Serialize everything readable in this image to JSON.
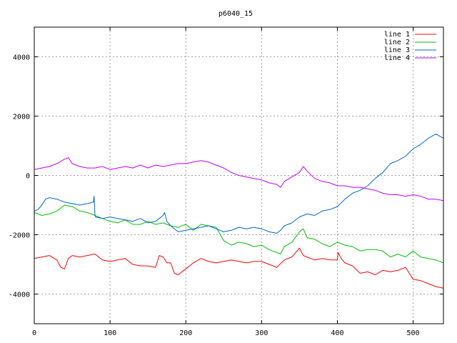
{
  "chart_data": {
    "type": "line",
    "title": "p6040_15",
    "xlabel": "",
    "ylabel": "",
    "xlim": [
      0,
      540
    ],
    "ylim": [
      -5000,
      5000
    ],
    "x_ticks": [
      0,
      100,
      200,
      300,
      400,
      500
    ],
    "y_ticks": [
      -4000,
      -2000,
      0,
      2000,
      4000
    ],
    "grid": true,
    "legend_position": "top-right",
    "series": [
      {
        "name": "line 1",
        "color": "#ff0000",
        "x": [
          0,
          10,
          20,
          30,
          35,
          40,
          45,
          50,
          60,
          70,
          80,
          90,
          100,
          110,
          120,
          130,
          140,
          150,
          160,
          165,
          170,
          175,
          180,
          185,
          190,
          200,
          210,
          220,
          230,
          240,
          250,
          260,
          270,
          280,
          290,
          300,
          310,
          320,
          330,
          340,
          350,
          355,
          360,
          370,
          380,
          390,
          400,
          401,
          405,
          410,
          420,
          430,
          440,
          450,
          460,
          470,
          480,
          490,
          500,
          510,
          520,
          530,
          540
        ],
        "values": [
          -2800,
          -2750,
          -2700,
          -2850,
          -3100,
          -3150,
          -2800,
          -2700,
          -2750,
          -2700,
          -2650,
          -2850,
          -2900,
          -2850,
          -2800,
          -3000,
          -3050,
          -3050,
          -3100,
          -2700,
          -2750,
          -2950,
          -2950,
          -3300,
          -3350,
          -3150,
          -2950,
          -2800,
          -2900,
          -2950,
          -2900,
          -2850,
          -2900,
          -2950,
          -2900,
          -2900,
          -3000,
          -3100,
          -2850,
          -2750,
          -2450,
          -2700,
          -2750,
          -2850,
          -2800,
          -2850,
          -2850,
          -2600,
          -2800,
          -2950,
          -3050,
          -3300,
          -3250,
          -3350,
          -3200,
          -3250,
          -3200,
          -3100,
          -3500,
          -3550,
          -3650,
          -3750,
          -3800
        ]
      },
      {
        "name": "line 2",
        "color": "#00c000",
        "x": [
          0,
          10,
          20,
          30,
          40,
          50,
          60,
          70,
          80,
          90,
          100,
          110,
          120,
          130,
          140,
          150,
          160,
          170,
          180,
          190,
          200,
          210,
          220,
          230,
          240,
          250,
          260,
          270,
          280,
          290,
          300,
          310,
          320,
          325,
          330,
          340,
          350,
          355,
          360,
          370,
          380,
          390,
          400,
          410,
          420,
          430,
          440,
          450,
          460,
          470,
          480,
          490,
          500,
          510,
          520,
          530,
          540
        ],
        "values": [
          -1250,
          -1350,
          -1300,
          -1200,
          -1000,
          -1050,
          -1200,
          -1250,
          -1350,
          -1450,
          -1550,
          -1600,
          -1500,
          -1650,
          -1650,
          -1550,
          -1650,
          -1600,
          -1700,
          -1750,
          -1650,
          -1850,
          -1650,
          -1700,
          -1750,
          -2200,
          -2350,
          -2250,
          -2300,
          -2400,
          -2350,
          -2500,
          -2600,
          -2650,
          -2400,
          -2250,
          -1900,
          -1800,
          -2100,
          -2150,
          -2300,
          -2400,
          -2250,
          -2350,
          -2400,
          -2550,
          -2500,
          -2500,
          -2550,
          -2750,
          -2650,
          -2750,
          -2550,
          -2750,
          -2800,
          -2850,
          -2950
        ]
      },
      {
        "name": "line 3",
        "color": "#0066cc",
        "x": [
          0,
          5,
          10,
          15,
          20,
          30,
          40,
          50,
          60,
          70,
          78,
          79,
          80,
          81,
          90,
          100,
          110,
          120,
          130,
          140,
          150,
          160,
          170,
          172,
          175,
          180,
          190,
          200,
          210,
          220,
          230,
          240,
          250,
          260,
          270,
          280,
          290,
          300,
          310,
          320,
          325,
          330,
          340,
          350,
          360,
          370,
          380,
          390,
          400,
          410,
          420,
          430,
          440,
          450,
          460,
          470,
          480,
          490,
          500,
          510,
          520,
          530,
          540
        ],
        "values": [
          -1200,
          -1150,
          -1000,
          -800,
          -750,
          -800,
          -900,
          -950,
          -1000,
          -950,
          -900,
          -700,
          -1300,
          -1400,
          -1450,
          -1400,
          -1450,
          -1500,
          -1550,
          -1450,
          -1600,
          -1550,
          -1350,
          -1250,
          -1550,
          -1700,
          -1900,
          -1850,
          -1800,
          -1750,
          -1700,
          -1800,
          -1900,
          -1850,
          -1750,
          -1800,
          -1750,
          -1800,
          -1900,
          -1950,
          -1850,
          -1700,
          -1600,
          -1400,
          -1300,
          -1350,
          -1200,
          -1150,
          -1050,
          -800,
          -600,
          -500,
          -350,
          -100,
          100,
          400,
          500,
          650,
          900,
          1050,
          1250,
          1400,
          1250
        ]
      },
      {
        "name": "line 4",
        "color": "#c000ff",
        "x": [
          0,
          10,
          20,
          30,
          40,
          45,
          50,
          60,
          70,
          80,
          90,
          100,
          110,
          120,
          130,
          140,
          150,
          160,
          170,
          180,
          190,
          200,
          210,
          220,
          230,
          240,
          250,
          260,
          270,
          280,
          290,
          300,
          310,
          320,
          325,
          330,
          340,
          350,
          355,
          360,
          370,
          380,
          390,
          400,
          410,
          420,
          430,
          440,
          450,
          460,
          470,
          480,
          490,
          500,
          510,
          520,
          530,
          540
        ],
        "values": [
          200,
          250,
          300,
          400,
          550,
          600,
          400,
          300,
          250,
          250,
          300,
          200,
          250,
          300,
          250,
          350,
          250,
          350,
          300,
          350,
          400,
          400,
          450,
          500,
          450,
          350,
          250,
          100,
          0,
          -50,
          -100,
          -150,
          -250,
          -300,
          -400,
          -200,
          -50,
          100,
          300,
          150,
          -100,
          -200,
          -250,
          -350,
          -350,
          -400,
          -400,
          -450,
          -500,
          -600,
          -650,
          -650,
          -700,
          -650,
          -700,
          -800,
          -800,
          -850
        ]
      }
    ]
  }
}
